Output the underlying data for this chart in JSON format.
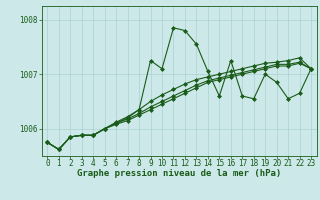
{
  "title": "Graphe pression niveau de la mer (hPa)",
  "bg_color": "#cce8e8",
  "line_color": "#1a5c1a",
  "grid_color": "#aad0d0",
  "ylim": [
    1005.5,
    1008.25
  ],
  "yticks": [
    1006,
    1007,
    1008
  ],
  "xlim": [
    -0.5,
    23.5
  ],
  "xticks": [
    0,
    1,
    2,
    3,
    4,
    5,
    6,
    7,
    8,
    9,
    10,
    11,
    12,
    13,
    14,
    15,
    16,
    17,
    18,
    19,
    20,
    21,
    22,
    23
  ],
  "series": [
    [
      1005.75,
      1005.62,
      1005.85,
      1005.88,
      1005.88,
      1006.0,
      1006.1,
      1006.2,
      1006.35,
      1007.25,
      1007.1,
      1007.85,
      1007.8,
      1007.55,
      1007.05,
      1006.6,
      1007.25,
      1006.6,
      1006.55,
      1007.0,
      1006.85,
      1006.55,
      1006.65,
      1007.1
    ],
    [
      1005.75,
      1005.62,
      1005.85,
      1005.88,
      1005.88,
      1006.0,
      1006.12,
      1006.22,
      1006.35,
      1006.5,
      1006.62,
      1006.72,
      1006.82,
      1006.9,
      1006.95,
      1007.0,
      1007.05,
      1007.1,
      1007.15,
      1007.2,
      1007.22,
      1007.25,
      1007.3,
      1007.1
    ],
    [
      1005.75,
      1005.62,
      1005.85,
      1005.88,
      1005.88,
      1006.0,
      1006.1,
      1006.18,
      1006.28,
      1006.4,
      1006.5,
      1006.6,
      1006.7,
      1006.8,
      1006.88,
      1006.93,
      1006.98,
      1007.03,
      1007.08,
      1007.13,
      1007.18,
      1007.18,
      1007.22,
      1007.1
    ],
    [
      1005.75,
      1005.62,
      1005.85,
      1005.88,
      1005.88,
      1006.0,
      1006.08,
      1006.15,
      1006.25,
      1006.35,
      1006.45,
      1006.55,
      1006.65,
      1006.75,
      1006.85,
      1006.9,
      1006.95,
      1007.0,
      1007.05,
      1007.1,
      1007.15,
      1007.15,
      1007.2,
      1007.1
    ]
  ],
  "marker": "D",
  "markersize": 2.0,
  "linewidth": 0.8,
  "title_fontsize": 6.5,
  "tick_fontsize": 5.5,
  "title_color": "#1a5c1a",
  "axis_color": "#1a5c1a"
}
